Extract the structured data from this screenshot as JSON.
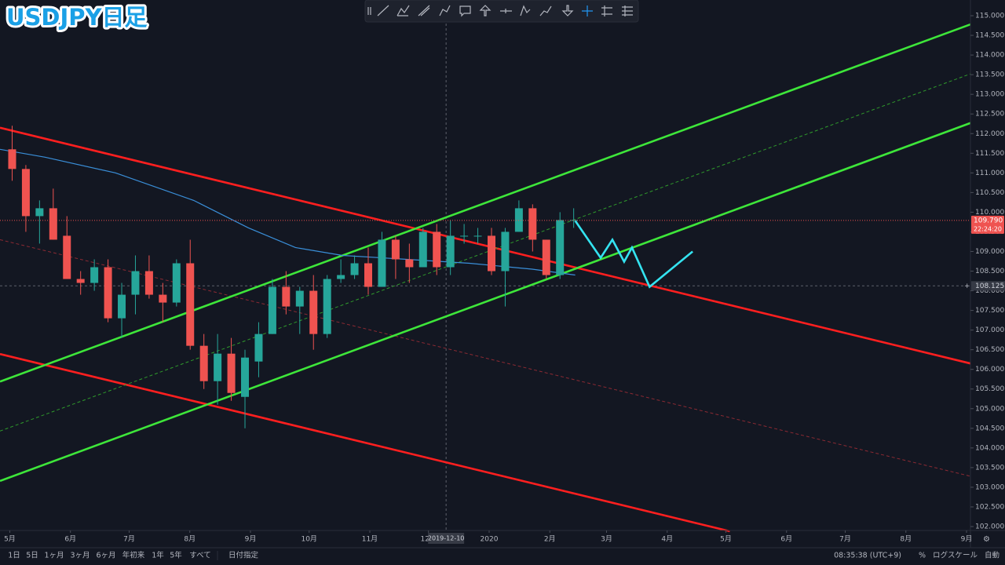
{
  "chart_data": {
    "type": "candlestick",
    "title": "USDJPY日足",
    "up_color": "#26a69a",
    "down_color": "#ef5350",
    "grid": false,
    "x": [
      "2019-04-29",
      "2019-05-06",
      "2019-05-13",
      "2019-05-20",
      "2019-05-27",
      "2019-06-03",
      "2019-06-10",
      "2019-06-17",
      "2019-06-24",
      "2019-07-01",
      "2019-07-08",
      "2019-07-15",
      "2019-07-22",
      "2019-07-29",
      "2019-08-05",
      "2019-08-12",
      "2019-08-19",
      "2019-08-26",
      "2019-09-02",
      "2019-09-09",
      "2019-09-16",
      "2019-09-23",
      "2019-09-30",
      "2019-10-07",
      "2019-10-14",
      "2019-10-21",
      "2019-10-28",
      "2019-11-04",
      "2019-11-11",
      "2019-11-18",
      "2019-11-25",
      "2019-12-02",
      "2019-12-09",
      "2019-12-16",
      "2019-12-23",
      "2019-12-30",
      "2020-01-06",
      "2020-01-13",
      "2020-01-20",
      "2020-01-27",
      "2020-02-03",
      "2020-02-10"
    ],
    "open": [
      111.6,
      111.1,
      109.9,
      110.1,
      109.4,
      108.3,
      108.2,
      108.6,
      107.3,
      107.9,
      108.5,
      107.9,
      107.7,
      108.7,
      106.6,
      105.7,
      106.4,
      105.3,
      106.2,
      106.9,
      108.1,
      107.6,
      108.0,
      106.9,
      108.3,
      108.4,
      108.7,
      108.1,
      109.3,
      108.8,
      108.6,
      109.5,
      108.6,
      109.4,
      109.4,
      109.4,
      108.5,
      109.5,
      110.1,
      109.3,
      108.4,
      109.8
    ],
    "high": [
      112.2,
      111.2,
      110.3,
      110.6,
      109.9,
      108.5,
      108.8,
      108.8,
      108.2,
      108.9,
      108.9,
      108.2,
      108.8,
      109.3,
      106.9,
      106.9,
      106.8,
      106.5,
      107.2,
      108.3,
      108.5,
      108.1,
      108.4,
      108.4,
      108.8,
      108.9,
      109.1,
      109.5,
      109.4,
      109.2,
      109.6,
      109.7,
      109.8,
      109.7,
      109.6,
      109.6,
      109.6,
      110.3,
      110.2,
      109.3,
      110.0,
      110.1
    ],
    "low": [
      110.8,
      109.5,
      109.2,
      109.3,
      108.3,
      107.9,
      108.0,
      107.2,
      106.8,
      107.4,
      107.8,
      107.2,
      107.6,
      106.5,
      105.5,
      105.1,
      105.2,
      104.5,
      105.8,
      106.9,
      107.4,
      106.9,
      106.5,
      106.8,
      108.2,
      108.3,
      107.9,
      108.1,
      108.3,
      108.2,
      108.6,
      108.4,
      108.4,
      109.2,
      109.2,
      108.4,
      107.6,
      109.5,
      109.0,
      108.3,
      108.3,
      109.6
    ],
    "close": [
      111.1,
      109.9,
      110.1,
      109.3,
      108.3,
      108.2,
      108.6,
      107.3,
      107.9,
      108.5,
      107.9,
      107.7,
      108.7,
      106.6,
      105.7,
      106.4,
      105.4,
      106.3,
      106.9,
      108.1,
      107.6,
      108.0,
      106.9,
      108.3,
      108.4,
      108.7,
      108.1,
      109.3,
      108.8,
      108.6,
      109.5,
      108.6,
      109.4,
      109.4,
      109.4,
      108.5,
      109.5,
      110.1,
      109.3,
      108.4,
      109.8,
      109.8
    ],
    "lines": [
      {
        "color": "#ff1f1f",
        "style": "solid",
        "x": [
          "2019-04-26",
          "2020-09-03"
        ],
        "values": [
          112.15,
          106.15
        ]
      },
      {
        "color": "#ff1f1f",
        "style": "solid",
        "x": [
          "2019-04-26",
          "2020-05-03"
        ],
        "values": [
          106.39,
          101.88
        ]
      },
      {
        "color": "#8c2a33",
        "style": "dashed",
        "x": [
          "2019-04-26",
          "2020-09-03"
        ],
        "values": [
          109.3,
          103.28
        ]
      },
      {
        "color": "#3ee63a",
        "style": "solid",
        "x": [
          "2019-04-26",
          "2020-09-03"
        ],
        "values": [
          105.69,
          114.78
        ]
      },
      {
        "color": "#3ee63a",
        "style": "solid",
        "x": [
          "2019-04-26",
          "2020-09-03"
        ],
        "values": [
          103.16,
          112.27
        ]
      },
      {
        "color": "#2f9a2c",
        "style": "dashed",
        "x": [
          "2019-04-26",
          "2020-09-03"
        ],
        "values": [
          104.43,
          113.52
        ]
      },
      {
        "color": "#3a8fd9",
        "style": "thin",
        "x": [
          "2019-04-26",
          "2019-05-19",
          "2019-06-24",
          "2019-08-03",
          "2019-08-31",
          "2019-09-24",
          "2019-10-18",
          "2019-11-20",
          "2019-12-22",
          "2020-01-23",
          "2020-02-14"
        ],
        "values": [
          111.6,
          111.4,
          111.0,
          110.3,
          109.6,
          109.1,
          108.9,
          108.8,
          108.7,
          108.55,
          108.4
        ]
      },
      {
        "color": "#34e3f0",
        "style": "bold",
        "x": [
          "2020-02-14",
          "2020-02-27",
          "2020-03-04",
          "2020-03-10",
          "2020-03-14",
          "2020-03-23",
          "2020-04-14"
        ],
        "values": [
          109.78,
          108.84,
          109.3,
          108.74,
          109.1,
          108.1,
          109.0
        ]
      }
    ],
    "xlim": [
      "2019-04-26",
      "2020-09-03"
    ],
    "xticks": [
      {
        "value": "2019-05-01",
        "label": "5月"
      },
      {
        "value": "2019-06-01",
        "label": "6月"
      },
      {
        "value": "2019-07-01",
        "label": "7月"
      },
      {
        "value": "2019-08-01",
        "label": "8月"
      },
      {
        "value": "2019-09-01",
        "label": "9月"
      },
      {
        "value": "2019-10-01",
        "label": "10月"
      },
      {
        "value": "2019-11-01",
        "label": "11月"
      },
      {
        "value": "2019-12-01",
        "label": "12月"
      },
      {
        "value": "2020-01-01",
        "label": "2020"
      },
      {
        "value": "2020-02-01",
        "label": "2月"
      },
      {
        "value": "2020-03-01",
        "label": "3月"
      },
      {
        "value": "2020-04-01",
        "label": "4月"
      },
      {
        "value": "2020-05-01",
        "label": "5月"
      },
      {
        "value": "2020-06-01",
        "label": "6月"
      },
      {
        "value": "2020-07-01",
        "label": "7月"
      },
      {
        "value": "2020-08-01",
        "label": "8月"
      },
      {
        "value": "2020-09-01",
        "label": "9月"
      }
    ],
    "ylim": [
      101.9,
      115.4
    ],
    "yticks": [
      {
        "value": 102,
        "label": "102.000"
      },
      {
        "value": 102.5,
        "label": "102.500"
      },
      {
        "value": 103,
        "label": "103.000"
      },
      {
        "value": 103.5,
        "label": "103.500"
      },
      {
        "value": 104,
        "label": "104.000"
      },
      {
        "value": 104.5,
        "label": "104.500"
      },
      {
        "value": 105,
        "label": "105.000"
      },
      {
        "value": 105.5,
        "label": "105.500"
      },
      {
        "value": 106,
        "label": "106.000"
      },
      {
        "value": 106.5,
        "label": "106.500"
      },
      {
        "value": 107,
        "label": "107.000"
      },
      {
        "value": 107.5,
        "label": "107.500"
      },
      {
        "value": 108,
        "label": "108.000"
      },
      {
        "value": 108.5,
        "label": "108.500"
      },
      {
        "value": 109,
        "label": "109.000"
      },
      {
        "value": 109.5,
        "label": "109.500"
      },
      {
        "value": 110,
        "label": "110.000"
      },
      {
        "value": 110.5,
        "label": "110.500"
      },
      {
        "value": 111,
        "label": "111.000"
      },
      {
        "value": 111.5,
        "label": "111.500"
      },
      {
        "value": 112,
        "label": "112.000"
      },
      {
        "value": 112.5,
        "label": "112.500"
      },
      {
        "value": 113,
        "label": "113.000"
      },
      {
        "value": 113.5,
        "label": "113.500"
      },
      {
        "value": 114,
        "label": "114.000"
      },
      {
        "value": 114.5,
        "label": "114.500"
      },
      {
        "value": 115,
        "label": "115.000"
      }
    ],
    "last_price": {
      "value": 109.79,
      "label": "109.790"
    },
    "countdown": "22:24:20",
    "crosshair": {
      "price": {
        "value": 108.125,
        "label": "108.125"
      },
      "date": "2019-12-10"
    }
  },
  "bottom_bar": {
    "ranges": [
      "1日",
      "5日",
      "1ヶ月",
      "3ヶ月",
      "6ヶ月",
      "年初来",
      "1年",
      "5年",
      "すべて"
    ],
    "date_range": "日付指定",
    "clock": "08:35:38 (UTC+9)",
    "percent": "%",
    "log_scale": "ログスケール",
    "auto": "自動"
  }
}
